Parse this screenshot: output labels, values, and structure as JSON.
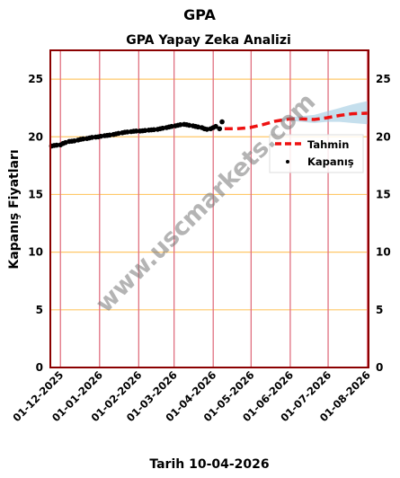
{
  "chart_data": {
    "type": "line",
    "title": "GPA",
    "subtitle": "GPA Yapay Zeka Analizi",
    "xlabel": "Tarih 10-04-2026",
    "ylabel": "Kapanış Fiyatları",
    "ylim": [
      0,
      27.5
    ],
    "xlim": [
      "2025-11-23",
      "2026-08-02"
    ],
    "yticks": [
      0,
      5,
      10,
      15,
      20,
      25
    ],
    "xticks": [
      "01-12-2025",
      "01-01-2026",
      "01-02-2026",
      "01-03-2026",
      "01-04-2026",
      "01-05-2026",
      "01-06-2026",
      "01-07-2026",
      "01-08-2026"
    ],
    "grid": "horizontal",
    "legend_position": "right",
    "watermark": "www.uscmarkets.com",
    "colors": {
      "actual": "#000000",
      "forecast": "#ee1111",
      "band": "#9ecae1",
      "hgrid": "#ffc868",
      "vgrid": "#e07080",
      "frame": "#8b0000"
    },
    "series": [
      {
        "name": "Kapanış",
        "style": "points",
        "points": [
          [
            "2025-11-24",
            19.2
          ],
          [
            "2025-11-26",
            19.25
          ],
          [
            "2025-11-28",
            19.28
          ],
          [
            "2025-12-01",
            19.3
          ],
          [
            "2025-12-03",
            19.42
          ],
          [
            "2025-12-05",
            19.5
          ],
          [
            "2025-12-08",
            19.6
          ],
          [
            "2025-12-10",
            19.62
          ],
          [
            "2025-12-12",
            19.65
          ],
          [
            "2025-12-15",
            19.72
          ],
          [
            "2025-12-17",
            19.78
          ],
          [
            "2025-12-19",
            19.82
          ],
          [
            "2025-12-22",
            19.85
          ],
          [
            "2025-12-24",
            19.9
          ],
          [
            "2025-12-26",
            19.95
          ],
          [
            "2025-12-29",
            19.98
          ],
          [
            "2025-12-31",
            20.0
          ],
          [
            "2026-01-02",
            20.05
          ],
          [
            "2026-01-05",
            20.1
          ],
          [
            "2026-01-07",
            20.12
          ],
          [
            "2026-01-09",
            20.15
          ],
          [
            "2026-01-12",
            20.2
          ],
          [
            "2026-01-14",
            20.25
          ],
          [
            "2026-01-16",
            20.3
          ],
          [
            "2026-01-19",
            20.35
          ],
          [
            "2026-01-21",
            20.4
          ],
          [
            "2026-01-23",
            20.42
          ],
          [
            "2026-01-26",
            20.45
          ],
          [
            "2026-01-28",
            20.48
          ],
          [
            "2026-01-30",
            20.5
          ],
          [
            "2026-02-02",
            20.5
          ],
          [
            "2026-02-04",
            20.52
          ],
          [
            "2026-02-06",
            20.55
          ],
          [
            "2026-02-09",
            20.58
          ],
          [
            "2026-02-11",
            20.6
          ],
          [
            "2026-02-13",
            20.62
          ],
          [
            "2026-02-16",
            20.65
          ],
          [
            "2026-02-18",
            20.7
          ],
          [
            "2026-02-20",
            20.75
          ],
          [
            "2026-02-23",
            20.8
          ],
          [
            "2026-02-25",
            20.85
          ],
          [
            "2026-02-27",
            20.9
          ],
          [
            "2026-03-02",
            20.95
          ],
          [
            "2026-03-04",
            21.0
          ],
          [
            "2026-03-06",
            21.05
          ],
          [
            "2026-03-09",
            21.08
          ],
          [
            "2026-03-11",
            21.05
          ],
          [
            "2026-03-13",
            21.0
          ],
          [
            "2026-03-16",
            20.95
          ],
          [
            "2026-03-18",
            20.9
          ],
          [
            "2026-03-20",
            20.85
          ],
          [
            "2026-03-23",
            20.8
          ],
          [
            "2026-03-25",
            20.7
          ],
          [
            "2026-03-27",
            20.65
          ],
          [
            "2026-03-30",
            20.7
          ],
          [
            "2026-04-01",
            20.8
          ],
          [
            "2026-04-03",
            20.9
          ],
          [
            "2026-04-06",
            20.7
          ],
          [
            "2026-04-08",
            21.3
          ]
        ]
      },
      {
        "name": "Tahmin",
        "style": "dashed",
        "points": [
          [
            "2026-04-10",
            20.7
          ],
          [
            "2026-04-20",
            20.7
          ],
          [
            "2026-04-30",
            20.8
          ],
          [
            "2026-05-10",
            21.05
          ],
          [
            "2026-05-20",
            21.35
          ],
          [
            "2026-05-31",
            21.55
          ],
          [
            "2026-06-10",
            21.55
          ],
          [
            "2026-06-20",
            21.5
          ],
          [
            "2026-06-30",
            21.65
          ],
          [
            "2026-07-10",
            21.85
          ],
          [
            "2026-07-20",
            22.0
          ],
          [
            "2026-08-01",
            22.05
          ]
        ],
        "band": [
          [
            "2026-05-20",
            21.3,
            21.4
          ],
          [
            "2026-05-31",
            21.4,
            21.7
          ],
          [
            "2026-06-10",
            21.3,
            21.8
          ],
          [
            "2026-06-20",
            21.2,
            21.9
          ],
          [
            "2026-06-30",
            21.3,
            22.2
          ],
          [
            "2026-07-10",
            21.3,
            22.5
          ],
          [
            "2026-07-20",
            21.2,
            22.8
          ],
          [
            "2026-08-01",
            21.1,
            23.1
          ]
        ]
      }
    ]
  }
}
